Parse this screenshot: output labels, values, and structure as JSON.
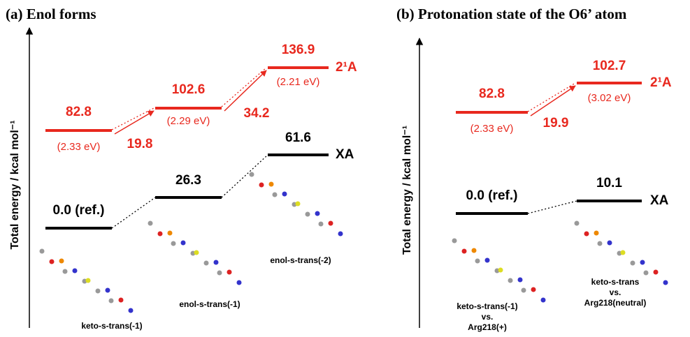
{
  "panels": [
    {
      "title": "(a) Enol forms",
      "axis_label": "Total energy / kcal mol⁻¹",
      "levels": [
        {
          "label": "82.8",
          "sublabel": "(2.33 eV)"
        },
        {
          "label": "102.6",
          "sublabel": "(2.29 eV)"
        },
        {
          "label": "136.9",
          "sublabel": "(2.21 eV)"
        },
        {
          "label": "0.0 (ref.)"
        },
        {
          "label": "26.3"
        },
        {
          "label": "61.6"
        }
      ],
      "state_labels": [
        "2¹A",
        "XA"
      ],
      "transitions": [
        "19.8",
        "34.2"
      ],
      "structures": [
        [
          "keto-s-trans(-1)"
        ],
        [
          "enol-s-trans(-1)"
        ],
        [
          "enol-s-trans(-2)"
        ]
      ]
    },
    {
      "title": "(b) Protonation state of the O6’ atom",
      "axis_label": "Total energy / kcal mol⁻¹",
      "levels": [
        {
          "label": "82.8",
          "sublabel": "(2.33 eV)"
        },
        {
          "label": "102.7",
          "sublabel": "(3.02 eV)"
        },
        {
          "label": "0.0 (ref.)"
        },
        {
          "label": "10.1"
        }
      ],
      "state_labels": [
        "2¹A",
        "XA"
      ],
      "transitions": [
        "19.9"
      ],
      "structures": [
        [
          "keto-s-trans(-1)",
          "vs.",
          "Arg218(+)"
        ],
        [
          "keto-s-trans",
          "vs.",
          "Arg218(neutral)"
        ]
      ]
    }
  ]
}
